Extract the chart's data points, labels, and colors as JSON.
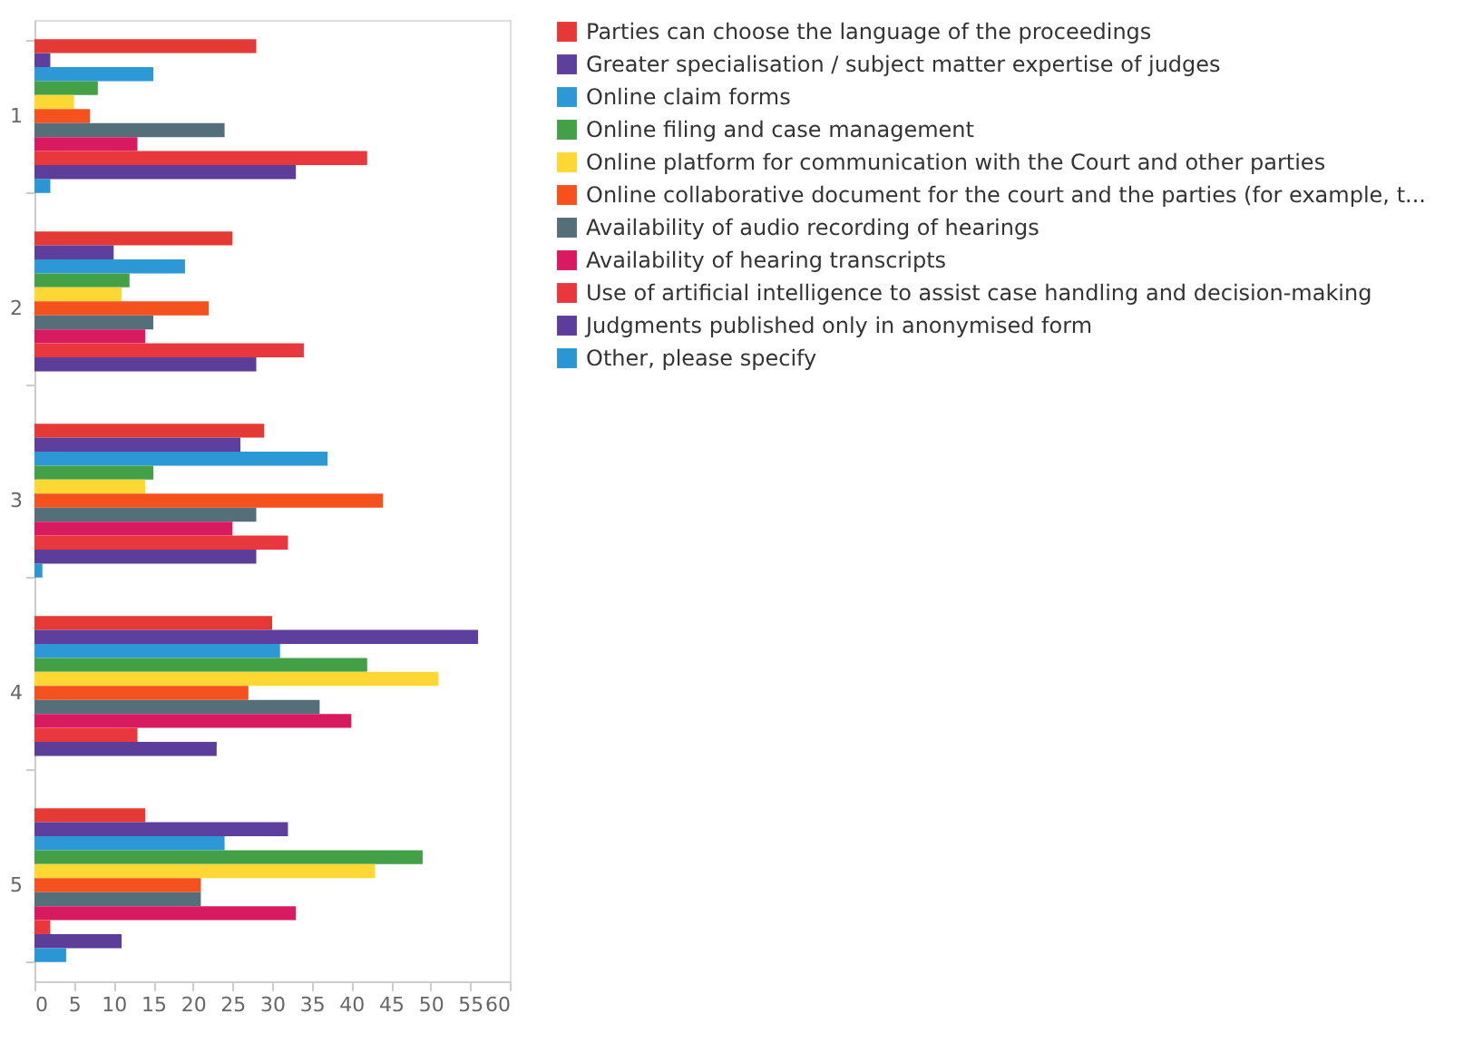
{
  "chart_data": {
    "type": "bar",
    "orientation": "horizontal",
    "categories": [
      "1",
      "2",
      "3",
      "4",
      "5"
    ],
    "xlim": [
      0,
      60
    ],
    "xticks": [
      0,
      5,
      10,
      15,
      20,
      25,
      30,
      35,
      40,
      45,
      50,
      55,
      60
    ],
    "grid": false,
    "legend": "right",
    "series": [
      {
        "name": "Parties can choose the language of the proceedings",
        "color": "#e53935",
        "values": [
          28,
          25,
          29,
          30,
          14
        ]
      },
      {
        "name": "Greater specialisation / subject matter expertise of judges",
        "color": "#5e3f9e",
        "values": [
          2,
          10,
          26,
          56,
          32
        ]
      },
      {
        "name": "Online claim forms",
        "color": "#2c98d6",
        "values": [
          15,
          19,
          37,
          31,
          24
        ]
      },
      {
        "name": "Online filing and case management",
        "color": "#43a047",
        "values": [
          8,
          12,
          15,
          42,
          49
        ]
      },
      {
        "name": "Online platform for communication with the Court and other parties",
        "color": "#fdd835",
        "values": [
          5,
          11,
          14,
          51,
          43
        ]
      },
      {
        "name": "Online collaborative document for the court and the parties (for example, t...",
        "color": "#f4511e",
        "values": [
          7,
          22,
          44,
          27,
          21
        ]
      },
      {
        "name": "Availability of audio recording of hearings",
        "color": "#546e7a",
        "values": [
          24,
          15,
          28,
          36,
          21
        ]
      },
      {
        "name": "Availability of hearing transcripts",
        "color": "#d81b60",
        "values": [
          13,
          14,
          25,
          40,
          33
        ]
      },
      {
        "name": "Use of artificial intelligence to assist case handling and decision-making",
        "color": "#e8383d",
        "values": [
          42,
          34,
          32,
          13,
          2
        ]
      },
      {
        "name": "Judgments published only in anonymised form",
        "color": "#5c3d99",
        "values": [
          33,
          28,
          28,
          23,
          11
        ]
      },
      {
        "name": "Other, please specify",
        "color": "#2a96d4",
        "values": [
          2,
          0,
          1,
          0,
          4
        ]
      }
    ]
  }
}
